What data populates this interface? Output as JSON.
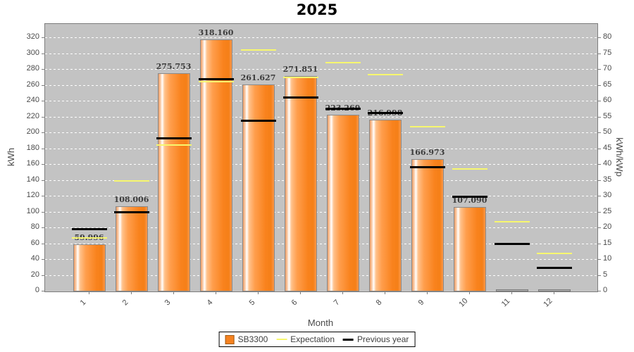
{
  "title": "2025",
  "axes": {
    "x_label": "Month",
    "left_label": "kWh",
    "right_label": "kWh/kWp",
    "left_ticks": [
      0,
      20,
      40,
      60,
      80,
      100,
      120,
      140,
      160,
      180,
      200,
      220,
      240,
      260,
      280,
      300,
      320
    ],
    "right_ticks": [
      0,
      5,
      10,
      15,
      20,
      25,
      30,
      35,
      40,
      45,
      50,
      55,
      60,
      65,
      70,
      75,
      80
    ]
  },
  "legend": {
    "items": [
      {
        "label": "SB3300",
        "swatch": "box-orange"
      },
      {
        "label": "Expectation",
        "swatch": "line-yellow"
      },
      {
        "label": "Previous year",
        "swatch": "line-black"
      }
    ]
  },
  "colors": {
    "plot_background": "#c3c3c3",
    "gridline": "#ffffff",
    "bar_main": "#f58220",
    "bar_border": "#8a8a8a",
    "expectation_line": "#f7f76e",
    "previous_year_line": "#000000",
    "tick_text": "#4a4a4a",
    "title_text": "#000000"
  },
  "chart_data": {
    "type": "bar",
    "title": "2025",
    "xlabel": "Month",
    "ylabel_left": "kWh",
    "ylabel_right": "kWh/kWp",
    "categories": [
      "1",
      "2",
      "3",
      "4",
      "5",
      "6",
      "7",
      "8",
      "9",
      "10",
      "11",
      "12"
    ],
    "ylim_left": [
      0,
      338
    ],
    "ylim_right": [
      0,
      84.5
    ],
    "grid": "horizontal dashed white, every 20 kWh (= 5 kWh/kWp)",
    "legend_position": "bottom-center",
    "series": [
      {
        "name": "SB3300",
        "type": "bar",
        "unit": "kWh",
        "values": [
          59.996,
          108.006,
          275.753,
          318.16,
          261.627,
          271.851,
          223.269,
          216.998,
          166.973,
          107.09,
          0,
          0
        ],
        "bar_labels": [
          "59.996",
          "108.006",
          "275.753",
          "318.160",
          "261.627",
          "271.851",
          "223.269",
          "216.998",
          "166.973",
          "107.090",
          "",
          ""
        ]
      },
      {
        "name": "Expectation",
        "type": "segments",
        "unit": "kWh",
        "values": [
          68,
          140,
          185,
          265,
          305,
          270,
          289,
          274,
          208,
          155,
          88,
          48
        ]
      },
      {
        "name": "Previous year",
        "type": "segments",
        "unit": "kWh",
        "values": [
          78,
          100,
          193,
          268,
          215,
          245,
          230,
          225,
          157,
          119,
          60,
          29
        ]
      }
    ]
  }
}
